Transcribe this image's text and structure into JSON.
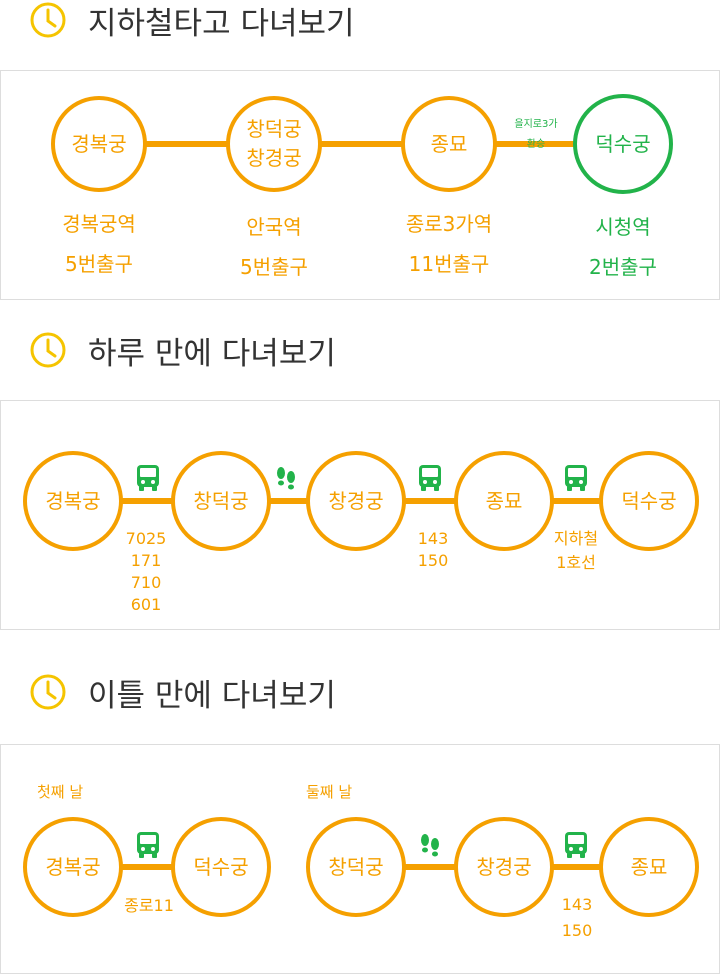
{
  "sections": {
    "subway": {
      "title": "지하철타고 다녀보기",
      "stations": [
        {
          "line1": "경복궁",
          "line2": ""
        },
        {
          "line1": "창덕궁",
          "line2": "창경궁"
        },
        {
          "line1": "종묘",
          "line2": ""
        },
        {
          "line1": "덕수궁",
          "line2": ""
        }
      ],
      "labels": [
        {
          "line1": "경복궁역",
          "line2": "5번출구"
        },
        {
          "line1": "안국역",
          "line2": "5번출구"
        },
        {
          "line1": "종로3가역",
          "line2": "11번출구"
        },
        {
          "line1": "시청역",
          "line2": "2번출구"
        }
      ],
      "transfer": {
        "line1": "을지로3가",
        "line2": "환승"
      }
    },
    "one_day": {
      "title": "하루 만에 다녀보기",
      "stops": [
        "경복궁",
        "창덕궁",
        "창경궁",
        "종묘",
        "덕수궁"
      ],
      "legs": [
        {
          "mode": "bus-icon",
          "lines": [
            "7025",
            "171",
            "710",
            "601"
          ]
        },
        {
          "mode": "footprints-icon",
          "lines": []
        },
        {
          "mode": "bus-icon",
          "lines": [
            "143",
            "150"
          ]
        },
        {
          "mode": "bus-icon",
          "lines": [
            "지하철",
            "1호선"
          ]
        }
      ]
    },
    "two_day": {
      "title": "이틀 만에 다녀보기",
      "day1": {
        "label": "첫째 날",
        "stops": [
          "경복궁",
          "덕수궁"
        ],
        "leg": {
          "mode": "bus-icon",
          "text": "종로11"
        }
      },
      "day2": {
        "label": "둘째 날",
        "stops": [
          "창덕궁",
          "창경궁",
          "종묘"
        ],
        "legs": [
          {
            "mode": "footprints-icon"
          },
          {
            "mode": "bus-icon",
            "lines": [
              "143",
              "150"
            ]
          }
        ]
      }
    }
  },
  "colors": {
    "accent": "#f5a000",
    "green": "#22b34a",
    "heading_icon": "#f5c400",
    "text": "#333333"
  },
  "icons": {
    "heading": "clock-icon"
  }
}
